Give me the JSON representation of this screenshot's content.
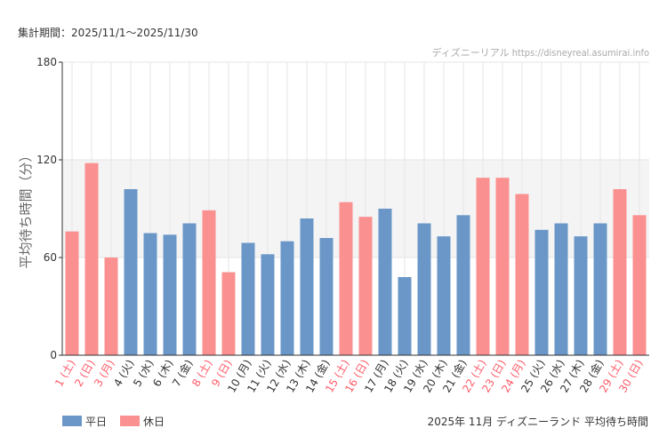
{
  "chart_data": {
    "type": "bar",
    "period_label": "集計期間：2025/11/1〜2025/11/30",
    "credit": "ディズニーリアル https://disneyreal.asumirai.info",
    "subtitle": "2025年 11月 ディズニーランド 平均待ち時間",
    "ylabel": "平均待ち時間（分）",
    "ylim": [
      0,
      180
    ],
    "yticks": [
      0,
      60,
      120,
      180
    ],
    "grid": true,
    "categories": [
      "1 (土)",
      "2 (日)",
      "3 (月)",
      "4 (火)",
      "5 (水)",
      "6 (木)",
      "7 (金)",
      "8 (土)",
      "9 (日)",
      "10 (月)",
      "11 (火)",
      "12 (水)",
      "13 (木)",
      "14 (金)",
      "15 (土)",
      "16 (日)",
      "17 (月)",
      "18 (火)",
      "19 (水)",
      "20 (木)",
      "21 (金)",
      "22 (土)",
      "23 (日)",
      "24 (月)",
      "25 (火)",
      "26 (水)",
      "27 (木)",
      "28 (金)",
      "29 (土)",
      "30 (日)"
    ],
    "values": [
      76,
      118,
      60,
      102,
      75,
      74,
      81,
      89,
      51,
      69,
      62,
      70,
      84,
      72,
      94,
      85,
      90,
      48,
      81,
      73,
      86,
      109,
      109,
      99,
      77,
      81,
      73,
      81,
      102,
      86
    ],
    "day_type": [
      "holiday",
      "holiday",
      "holiday",
      "weekday",
      "weekday",
      "weekday",
      "weekday",
      "holiday",
      "holiday",
      "weekday",
      "weekday",
      "weekday",
      "weekday",
      "weekday",
      "holiday",
      "holiday",
      "weekday",
      "weekday",
      "weekday",
      "weekday",
      "weekday",
      "holiday",
      "holiday",
      "holiday",
      "weekday",
      "weekday",
      "weekday",
      "weekday",
      "holiday",
      "holiday"
    ],
    "series": [
      {
        "key": "weekday",
        "name": "平日",
        "color": "#6a97c8"
      },
      {
        "key": "holiday",
        "name": "休日",
        "color": "#fb9091"
      }
    ],
    "holiday_label_color": "#ff5c6a",
    "weekday_label_color": "#333333",
    "band_range": [
      60,
      120
    ],
    "legend_position": "bottom-left"
  }
}
